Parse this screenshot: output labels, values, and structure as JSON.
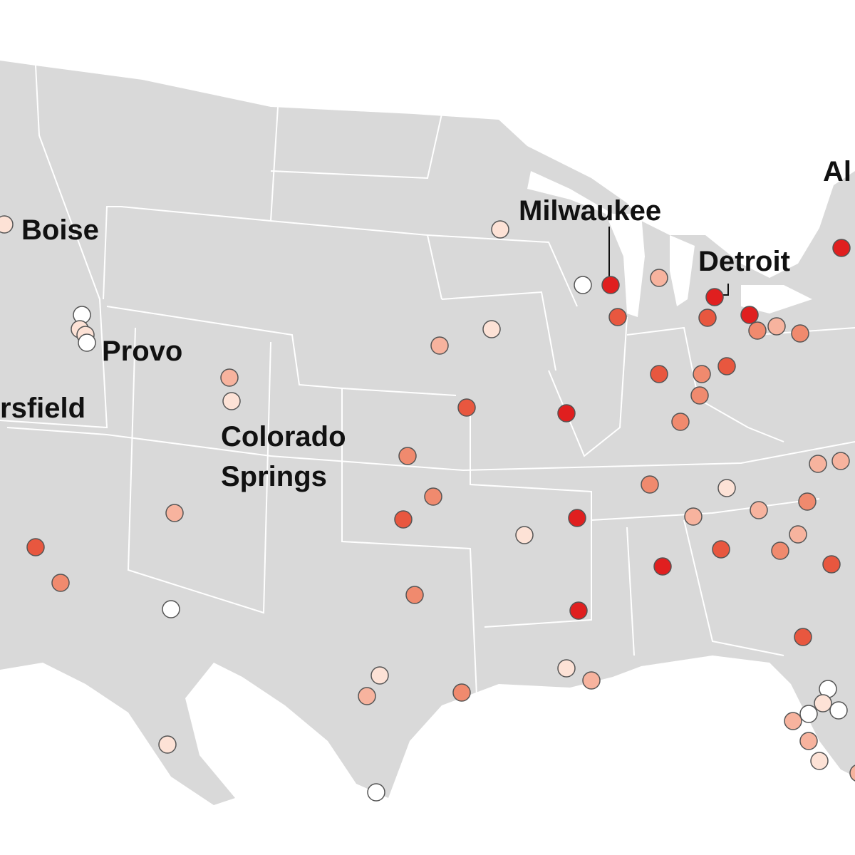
{
  "labels": [
    {
      "lines": [
        "Boise"
      ]
    },
    {
      "lines": [
        "Provo"
      ]
    },
    {
      "lines": [
        "rsfield"
      ]
    },
    {
      "lines": [
        "Colorado",
        "Springs"
      ]
    },
    {
      "lines": [
        "Milwaukee"
      ]
    },
    {
      "lines": [
        "Detroit"
      ]
    },
    {
      "lines": [
        "Al"
      ]
    }
  ]
}
